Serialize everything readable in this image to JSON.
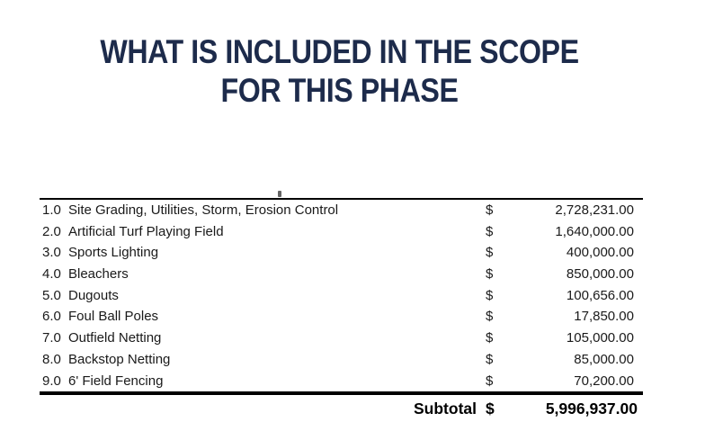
{
  "title": {
    "line1": "WHAT IS INCLUDED IN THE SCOPE",
    "line2": "FOR THIS PHASE"
  },
  "colors": {
    "title_navy": "#1d2b4b",
    "body_text": "#1a1a1a",
    "rule_lines": "#000000",
    "background": "#ffffff"
  },
  "table": {
    "rows": [
      {
        "num": "1.0",
        "desc": "Site Grading, Utilities, Storm, Erosion Control",
        "currency": "$",
        "amount": "2,728,231.00"
      },
      {
        "num": "2.0",
        "desc": "Artificial Turf Playing Field",
        "currency": "$",
        "amount": "1,640,000.00"
      },
      {
        "num": "3.0",
        "desc": "Sports Lighting",
        "currency": "$",
        "amount": "400,000.00"
      },
      {
        "num": "4.0",
        "desc": "Bleachers",
        "currency": "$",
        "amount": "850,000.00"
      },
      {
        "num": "5.0",
        "desc": "Dugouts",
        "currency": "$",
        "amount": "100,656.00"
      },
      {
        "num": "6.0",
        "desc": "Foul Ball Poles",
        "currency": "$",
        "amount": "17,850.00"
      },
      {
        "num": "7.0",
        "desc": "Outfield Netting",
        "currency": "$",
        "amount": "105,000.00"
      },
      {
        "num": "8.0",
        "desc": "Backstop Netting",
        "currency": "$",
        "amount": "85,000.00"
      },
      {
        "num": "9.0",
        "desc": "6' Field Fencing",
        "currency": "$",
        "amount": "70,200.00"
      }
    ],
    "subtotal": {
      "label": "Subtotal",
      "currency": "$",
      "amount": "5,996,937.00"
    }
  }
}
